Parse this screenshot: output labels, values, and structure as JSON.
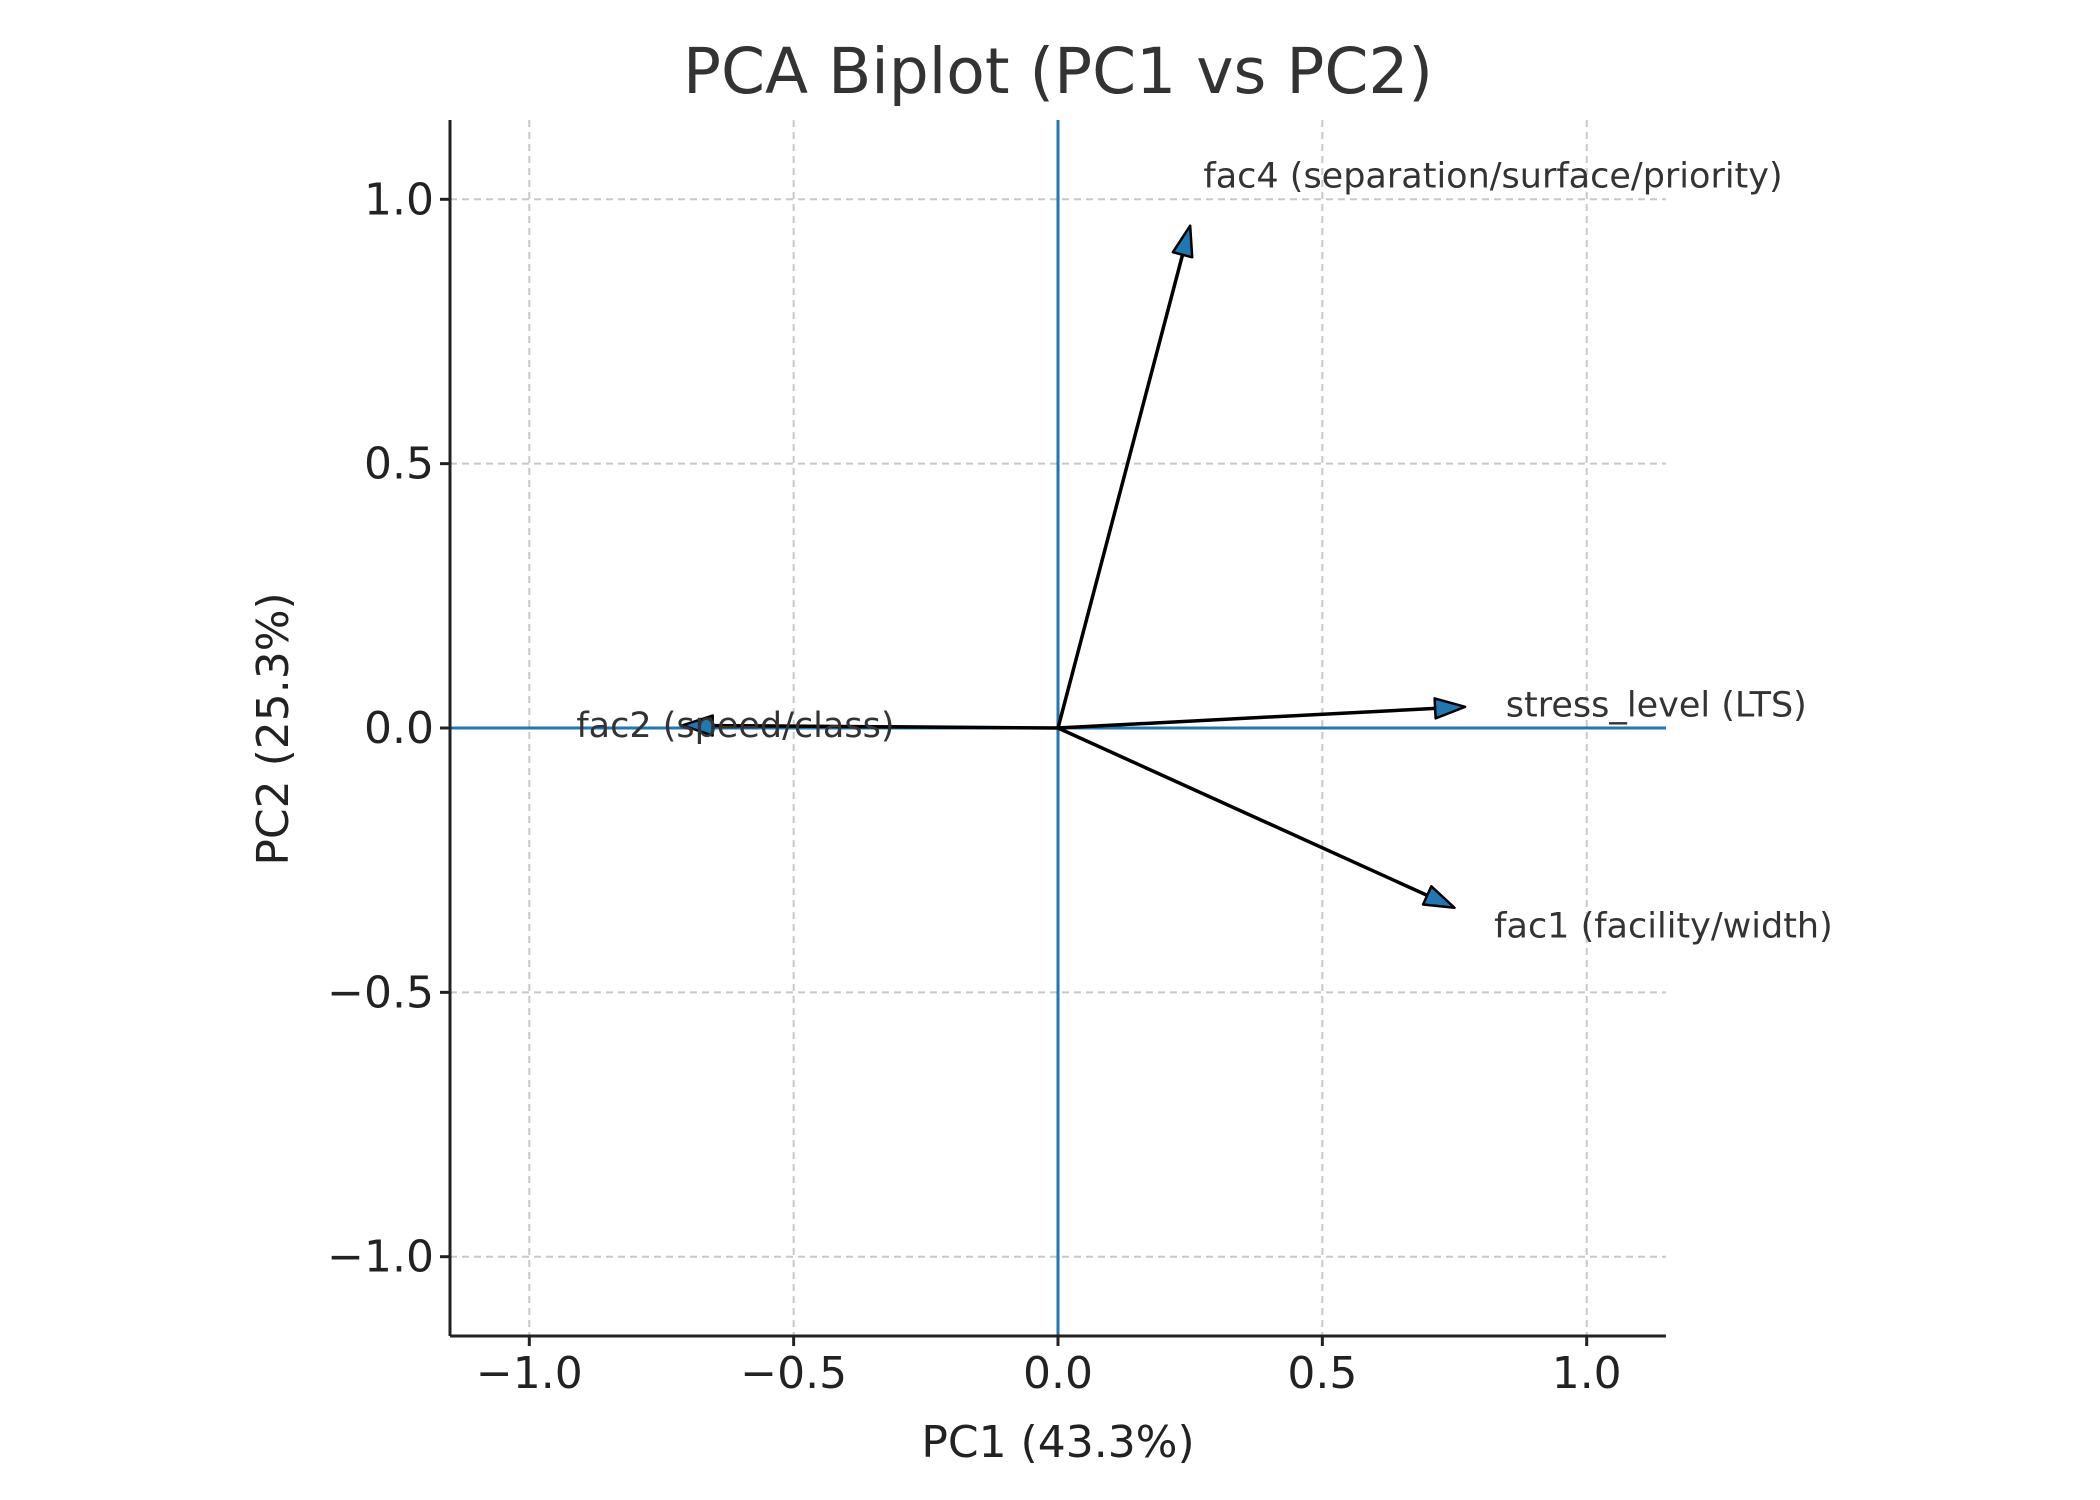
{
  "chart_data": {
    "type": "scatter",
    "subtype": "biplot",
    "title": "PCA Biplot (PC1 vs PC2)",
    "xlabel": "PC1 (43.3%)",
    "ylabel": "PC2 (25.3%)",
    "xlim": [
      -1.15,
      1.15
    ],
    "ylim": [
      -1.15,
      1.15
    ],
    "xticks": [
      -1.0,
      -0.5,
      0.0,
      0.5,
      1.0
    ],
    "yticks": [
      -1.0,
      -0.5,
      0.0,
      0.5,
      1.0
    ],
    "xtick_labels": [
      "−1.0",
      "−0.5",
      "0.0",
      "0.5",
      "1.0"
    ],
    "ytick_labels": [
      "−1.0",
      "−0.5",
      "0.0",
      "0.5",
      "1.0"
    ],
    "grid": true,
    "reference_line_color": "#1f77b4",
    "arrow_color": "#000000",
    "arrowhead_fill": "#1f77b4",
    "loadings": [
      {
        "label": "fac1 (facility/width)",
        "x": 0.75,
        "y": -0.34
      },
      {
        "label": "fac2 (speed/class)",
        "x": -0.71,
        "y": 0.005
      },
      {
        "label": "fac4 (separation/surface/priority)",
        "x": 0.25,
        "y": 0.95
      },
      {
        "label": "stress_level (LTS)",
        "x": 0.77,
        "y": 0.04
      }
    ]
  }
}
